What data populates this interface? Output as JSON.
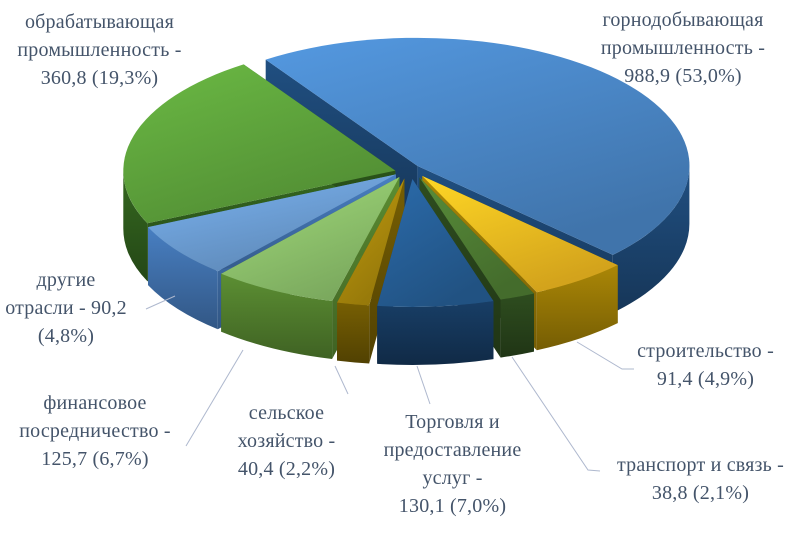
{
  "chart_data": {
    "type": "pie",
    "style": "3d-exploded-pie",
    "background_color": "#ffffff",
    "label_color": "#44546A",
    "leader_line_color": "#AEB8CE",
    "legend": "none",
    "title": "",
    "slices": [
      {
        "id": "mining",
        "label": "горнодобывающая промышленность",
        "value": 988.9,
        "percent": 53.0,
        "display": "988,9 (53,0%)",
        "label_lines": [
          "горнодобывающая",
          "промышленность -",
          "988,9 (53,0%)"
        ],
        "color": "#4A87C7",
        "side_color": "#1E4977"
      },
      {
        "id": "construction",
        "label": "строительство",
        "value": 91.4,
        "percent": 4.9,
        "display": "91,4 (4,9%)",
        "label_lines": [
          "строительство -",
          "91,4 (4,9%)"
        ],
        "color": "#F5BE21",
        "side_color": "#9E7D06"
      },
      {
        "id": "transport",
        "label": "транспорт и связь",
        "value": 38.8,
        "percent": 2.1,
        "display": "38,8 (2,1%)",
        "label_lines": [
          "транспорт и связь -",
          "38,8 (2,1%)"
        ],
        "color": "#4F7D33",
        "side_color": "#2B471D"
      },
      {
        "id": "trade",
        "label": "Торговля и предоставление услуг",
        "value": 130.1,
        "percent": 7.0,
        "display": "130,1 (7,0%)",
        "label_lines": [
          "Торговля и",
          "предоставление",
          "услуг -",
          "130,1 (7,0%)"
        ],
        "color": "#265F97",
        "side_color": "#16395E"
      },
      {
        "id": "agriculture",
        "label": "сельское хозяйство",
        "value": 40.4,
        "percent": 2.2,
        "display": "40,4 (2,2%)",
        "label_lines": [
          "сельское",
          "хозяйство -",
          "40,4 (2,2%)"
        ],
        "color": "#AC8A0C",
        "side_color": "#6E5803"
      },
      {
        "id": "finance",
        "label": "финансовое посредничество",
        "value": 125.7,
        "percent": 6.7,
        "display": "125,7 (6,7%)",
        "label_lines": [
          "финансовое",
          "посредничество -",
          "125,7 (6,7%)"
        ],
        "color": "#8FC46D",
        "side_color": "#55842F"
      },
      {
        "id": "other",
        "label": "другие отрасли",
        "value": 90.2,
        "percent": 4.8,
        "display": "90,2 (4,8%)",
        "label_lines": [
          "другие",
          "отрасли - 90,2",
          "(4,8%)"
        ],
        "color": "#6D9FD6",
        "side_color": "#4376B4"
      },
      {
        "id": "manufacturing",
        "label": "обрабатывающая промышленность",
        "value": 360.8,
        "percent": 19.3,
        "display": "360,8 (19,3%)",
        "label_lines": [
          "обрабатывающая",
          "промышленность -",
          "360,8 (19,3%)"
        ],
        "color": "#5FA53C",
        "side_color": "#31601E"
      }
    ]
  }
}
